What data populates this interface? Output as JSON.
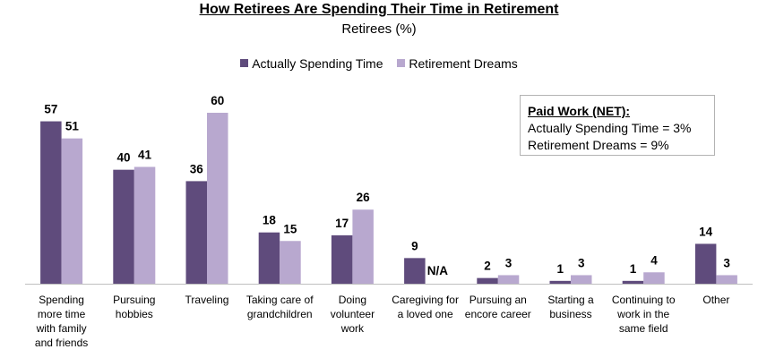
{
  "title": "How Retirees Are Spending Their Time in Retirement",
  "subtitle": "Retirees (%)",
  "note": {
    "title": "Paid Work (NET):",
    "lines": [
      "Actually Spending Time = 3%",
      "Retirement Dreams = 9%"
    ]
  },
  "chart_data": {
    "type": "bar",
    "categories": [
      "Spending more time with family and friends",
      "Pursuing hobbies",
      "Traveling",
      "Taking care of grandchildren",
      "Doing volunteer work",
      "Caregiving for a loved one",
      "Pursuing an encore career",
      "Starting a business",
      "Continuing to work in the same field",
      "Other"
    ],
    "category_lines": [
      [
        "Spending",
        "more time",
        "with family",
        "and friends"
      ],
      [
        "Pursuing",
        "hobbies"
      ],
      [
        "Traveling"
      ],
      [
        "Taking care of",
        "grandchildren"
      ],
      [
        "Doing",
        "volunteer",
        "work"
      ],
      [
        "Caregiving for",
        "a loved one"
      ],
      [
        "Pursuing an",
        "encore career"
      ],
      [
        "Starting a",
        "business"
      ],
      [
        "Continuing to",
        "work in the",
        "same field"
      ],
      [
        "Other"
      ]
    ],
    "series": [
      {
        "name": "Actually Spending Time",
        "color": "#5f4b7c",
        "values": [
          57,
          40,
          36,
          18,
          17,
          9,
          2,
          1,
          1,
          14
        ]
      },
      {
        "name": "Retirement Dreams",
        "color": "#b8a8cf",
        "values": [
          51,
          41,
          60,
          15,
          26,
          null,
          3,
          3,
          4,
          3
        ]
      }
    ],
    "missing_label": "N/A",
    "ylim": [
      0,
      60
    ],
    "grid": false,
    "legend_position": "top-center"
  }
}
